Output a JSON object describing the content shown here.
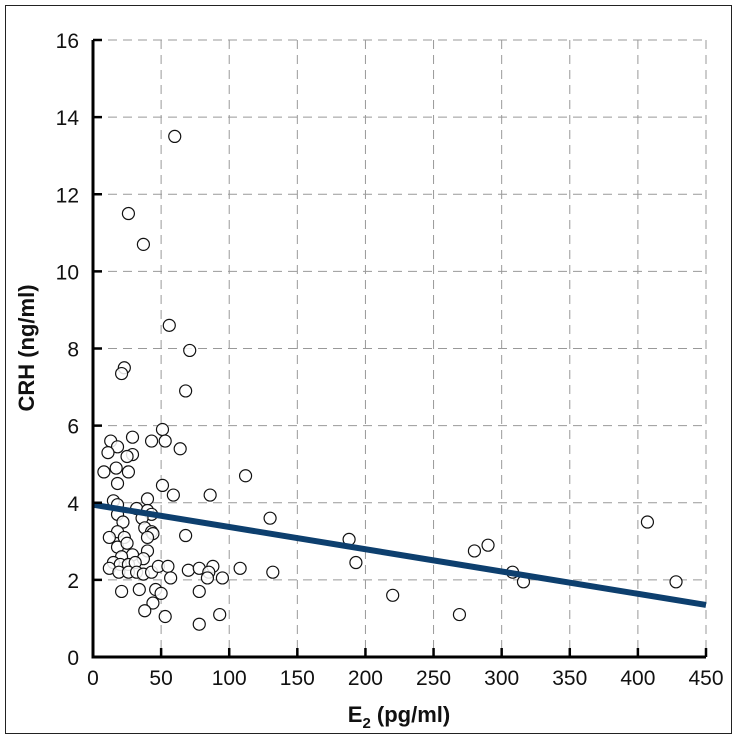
{
  "chart_data": {
    "type": "scatter",
    "xlabel": "E",
    "xlabel_subscript": "2",
    "xlabel_unit": " (pg/ml)",
    "ylabel": "CRH (ng/ml)",
    "xlim": [
      0,
      450
    ],
    "ylim": [
      0,
      16
    ],
    "xticks": [
      "0",
      "50",
      "100",
      "150",
      "200",
      "250",
      "300",
      "350",
      "400",
      "450"
    ],
    "yticks": [
      "0",
      "2",
      "4",
      "6",
      "8",
      "10",
      "12",
      "14",
      "16"
    ],
    "grid": true,
    "marker": "open-circle",
    "colors": {
      "trendline": "#0d3f6e",
      "marker_stroke": "#111111",
      "grid": "#999999"
    },
    "trendline": {
      "x": [
        0,
        450
      ],
      "y": [
        3.95,
        1.35
      ]
    },
    "points": [
      [
        60,
        13.5
      ],
      [
        26,
        11.5
      ],
      [
        37,
        10.7
      ],
      [
        56,
        8.6
      ],
      [
        71,
        7.95
      ],
      [
        23,
        7.5
      ],
      [
        21,
        7.35
      ],
      [
        68,
        6.9
      ],
      [
        51,
        5.9
      ],
      [
        29,
        5.7
      ],
      [
        43,
        5.6
      ],
      [
        53,
        5.6
      ],
      [
        13,
        5.6
      ],
      [
        18,
        5.45
      ],
      [
        64,
        5.4
      ],
      [
        11,
        5.3
      ],
      [
        29,
        5.25
      ],
      [
        25,
        5.2
      ],
      [
        17,
        4.9
      ],
      [
        8,
        4.8
      ],
      [
        26,
        4.8
      ],
      [
        18,
        4.5
      ],
      [
        112,
        4.7
      ],
      [
        51,
        4.45
      ],
      [
        59,
        4.2
      ],
      [
        86,
        4.2
      ],
      [
        40,
        4.1
      ],
      [
        15,
        4.05
      ],
      [
        130,
        3.6
      ],
      [
        407,
        3.5
      ],
      [
        428,
        1.95
      ],
      [
        188,
        3.05
      ],
      [
        193,
        2.45
      ],
      [
        220,
        1.6
      ],
      [
        269,
        1.1
      ],
      [
        280,
        2.75
      ],
      [
        290,
        2.9
      ],
      [
        308,
        2.2
      ],
      [
        316,
        1.95
      ],
      [
        132,
        2.2
      ],
      [
        18,
        3.95
      ],
      [
        32,
        3.85
      ],
      [
        40,
        3.8
      ],
      [
        18,
        3.7
      ],
      [
        43,
        3.7
      ],
      [
        22,
        3.5
      ],
      [
        36,
        3.6
      ],
      [
        38,
        3.35
      ],
      [
        43,
        3.25
      ],
      [
        44,
        3.2
      ],
      [
        18,
        3.25
      ],
      [
        12,
        3.1
      ],
      [
        23,
        3.1
      ],
      [
        40,
        3.1
      ],
      [
        68,
        3.15
      ],
      [
        18,
        2.85
      ],
      [
        25,
        2.95
      ],
      [
        29,
        2.65
      ],
      [
        21,
        2.6
      ],
      [
        40,
        2.75
      ],
      [
        37,
        2.55
      ],
      [
        15,
        2.45
      ],
      [
        20,
        2.4
      ],
      [
        26,
        2.4
      ],
      [
        31,
        2.45
      ],
      [
        12,
        2.3
      ],
      [
        19,
        2.2
      ],
      [
        26,
        2.2
      ],
      [
        32,
        2.2
      ],
      [
        37,
        2.15
      ],
      [
        43,
        2.2
      ],
      [
        48,
        2.35
      ],
      [
        55,
        2.35
      ],
      [
        57,
        2.05
      ],
      [
        70,
        2.25
      ],
      [
        78,
        2.3
      ],
      [
        88,
        2.35
      ],
      [
        85,
        2.2
      ],
      [
        84,
        2.05
      ],
      [
        95,
        2.05
      ],
      [
        108,
        2.3
      ],
      [
        21,
        1.7
      ],
      [
        34,
        1.75
      ],
      [
        46,
        1.75
      ],
      [
        50,
        1.65
      ],
      [
        78,
        1.7
      ],
      [
        44,
        1.4
      ],
      [
        38,
        1.2
      ],
      [
        53,
        1.05
      ],
      [
        78,
        0.85
      ],
      [
        93,
        1.1
      ]
    ]
  }
}
